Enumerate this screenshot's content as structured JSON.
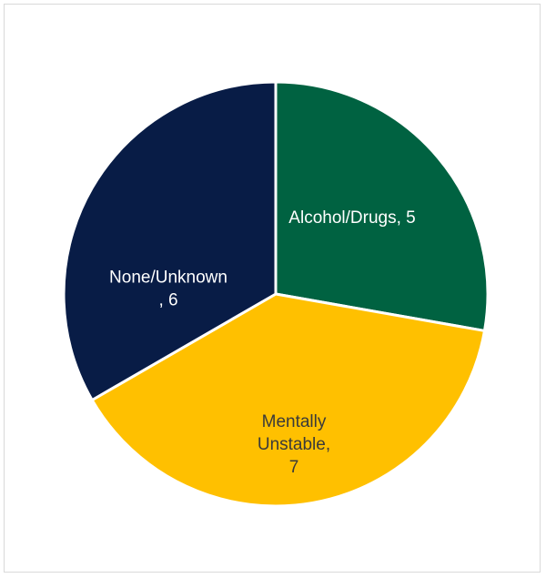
{
  "chart_data": {
    "type": "pie",
    "title": "",
    "slices": [
      {
        "label": "Alcohol/Drugs",
        "value": 5,
        "color": "#006241",
        "label_lines": [
          "Alcohol/Drugs, 5"
        ],
        "label_color": "#ffffff"
      },
      {
        "label": "Mentally Unstable",
        "value": 7,
        "color": "#ffc000",
        "label_lines": [
          "Mentally",
          "Unstable,",
          "7"
        ],
        "label_color": "#3a3a3a"
      },
      {
        "label": "None/Unknown",
        "value": 6,
        "color": "#081c46",
        "label_lines": [
          "None/Unknown",
          ", 6"
        ],
        "label_color": "#ffffff"
      }
    ],
    "start_angle_deg": 0,
    "direction": "clockwise",
    "slice_border_color": "#ffffff",
    "legend": "none"
  }
}
